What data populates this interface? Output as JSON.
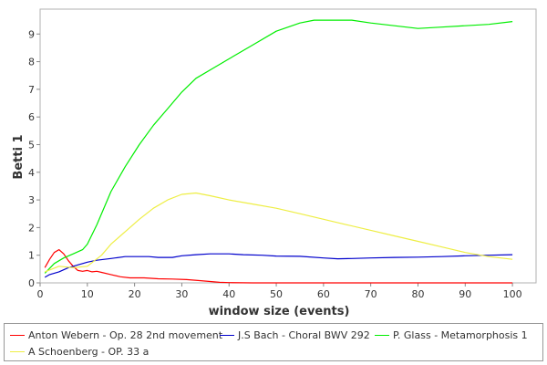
{
  "chart_data": {
    "type": "line",
    "title": "",
    "xlabel": "window size (events)",
    "ylabel": "Betti 1",
    "xlim": [
      0,
      105
    ],
    "ylim": [
      0,
      9.9
    ],
    "xticks": [
      0,
      10,
      20,
      30,
      40,
      50,
      60,
      70,
      80,
      90,
      100
    ],
    "yticks": [
      0,
      1,
      2,
      3,
      4,
      5,
      6,
      7,
      8,
      9
    ],
    "grid": false,
    "legend_position": "bottom",
    "series": [
      {
        "name": "Anton Webern - Op. 28 2nd movement",
        "color": "#ff0000",
        "x": [
          1,
          2,
          3,
          4,
          5,
          6,
          7,
          8,
          9,
          10,
          11,
          12,
          13,
          15,
          17,
          19,
          22,
          25,
          28,
          31,
          34,
          36,
          38,
          40,
          45,
          50,
          60,
          70,
          80,
          90,
          100
        ],
        "y": [
          0.55,
          0.85,
          1.1,
          1.2,
          1.05,
          0.8,
          0.6,
          0.45,
          0.42,
          0.45,
          0.4,
          0.42,
          0.38,
          0.3,
          0.22,
          0.18,
          0.18,
          0.15,
          0.14,
          0.12,
          0.08,
          0.05,
          0.02,
          0.01,
          0.0,
          0.0,
          0.0,
          0.0,
          0.0,
          0.0,
          0.0
        ]
      },
      {
        "name": "J.S Bach - Choral BWV 292",
        "color": "#0000cc",
        "x": [
          1,
          2,
          4,
          6,
          8,
          10,
          12,
          15,
          18,
          20,
          23,
          25,
          28,
          30,
          33,
          36,
          40,
          43,
          47,
          50,
          55,
          60,
          63,
          66,
          70,
          75,
          80,
          85,
          90,
          95,
          100
        ],
        "y": [
          0.2,
          0.3,
          0.4,
          0.55,
          0.65,
          0.75,
          0.82,
          0.88,
          0.95,
          0.95,
          0.95,
          0.92,
          0.92,
          0.98,
          1.02,
          1.05,
          1.05,
          1.02,
          1.0,
          0.97,
          0.96,
          0.9,
          0.87,
          0.88,
          0.9,
          0.92,
          0.93,
          0.95,
          0.98,
          1.0,
          1.02
        ]
      },
      {
        "name": "P. Glass - Metamorphosis 1",
        "color": "#00ee00",
        "x": [
          1,
          3,
          5,
          7,
          9,
          10,
          12,
          15,
          18,
          21,
          24,
          27,
          30,
          33,
          37,
          40,
          45,
          50,
          55,
          58,
          62,
          66,
          70,
          75,
          80,
          85,
          90,
          95,
          100
        ],
        "y": [
          0.35,
          0.7,
          0.9,
          1.05,
          1.2,
          1.4,
          2.1,
          3.3,
          4.2,
          5.0,
          5.7,
          6.3,
          6.9,
          7.4,
          7.8,
          8.1,
          8.6,
          9.1,
          9.4,
          9.5,
          9.5,
          9.5,
          9.4,
          9.3,
          9.2,
          9.25,
          9.3,
          9.35,
          9.45
        ]
      },
      {
        "name": "A Schoenberg - OP. 33 a",
        "color": "#eeee44",
        "x": [
          1,
          4,
          7,
          10,
          13,
          15,
          18,
          21,
          24,
          27,
          30,
          33,
          36,
          40,
          45,
          50,
          55,
          60,
          65,
          70,
          75,
          80,
          85,
          90,
          95,
          100
        ],
        "y": [
          0.4,
          0.6,
          0.55,
          0.6,
          1.0,
          1.4,
          1.85,
          2.3,
          2.7,
          3.0,
          3.2,
          3.25,
          3.15,
          3.0,
          2.85,
          2.7,
          2.5,
          2.3,
          2.1,
          1.9,
          1.7,
          1.5,
          1.3,
          1.1,
          0.95,
          0.85
        ]
      }
    ]
  }
}
